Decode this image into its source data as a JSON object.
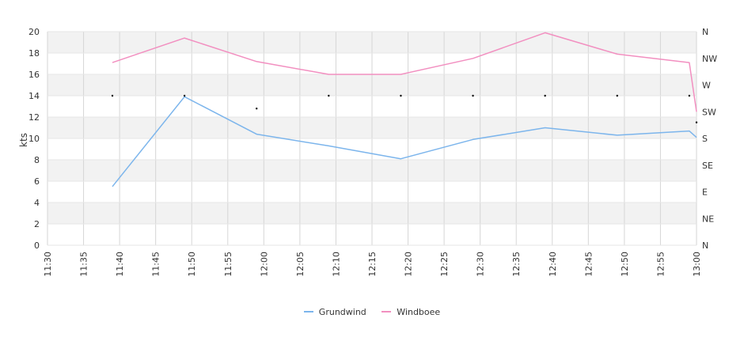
{
  "chart_data": {
    "type": "line",
    "ylabel": "kts",
    "ylim": [
      0,
      20
    ],
    "yticks": [
      0,
      2,
      4,
      6,
      8,
      10,
      12,
      14,
      16,
      18,
      20
    ],
    "y2ticks": [
      "N",
      "NE",
      "E",
      "SE",
      "S",
      "SW",
      "W",
      "NW",
      "N"
    ],
    "xlim": [
      "11:30",
      "13:00"
    ],
    "xticks": [
      "11:30",
      "11:35",
      "11:40",
      "11:45",
      "11:50",
      "11:55",
      "12:00",
      "12:05",
      "12:10",
      "12:15",
      "12:20",
      "12:25",
      "12:30",
      "12:35",
      "12:40",
      "12:45",
      "12:50",
      "12:55",
      "13:00"
    ],
    "grid": true,
    "legend_position": "bottom-center",
    "series": [
      {
        "name": "Grundwind",
        "color": "#7cb5ec",
        "x": [
          "11:39",
          "11:49",
          "11:59",
          "12:09",
          "12:19",
          "12:29",
          "12:39",
          "12:49",
          "12:59",
          "13:00"
        ],
        "values": [
          5.5,
          13.9,
          10.4,
          9.3,
          8.1,
          9.9,
          11.0,
          10.3,
          10.7,
          10.1
        ]
      },
      {
        "name": "Windboee",
        "color": "#f28fc0",
        "x": [
          "11:39",
          "11:49",
          "11:59",
          "12:09",
          "12:19",
          "12:29",
          "12:39",
          "12:49",
          "12:59",
          "13:00"
        ],
        "values": [
          17.1,
          19.4,
          17.2,
          16.0,
          16.0,
          17.5,
          19.9,
          17.9,
          17.1,
          12.5
        ]
      }
    ],
    "direction": {
      "x": [
        "11:39",
        "11:49",
        "11:59",
        "12:09",
        "12:19",
        "12:29",
        "12:39",
        "12:49",
        "12:59",
        "13:00"
      ],
      "values": [
        14.0,
        14.0,
        12.8,
        14.0,
        14.0,
        14.0,
        14.0,
        14.0,
        14.0,
        11.5
      ]
    }
  }
}
